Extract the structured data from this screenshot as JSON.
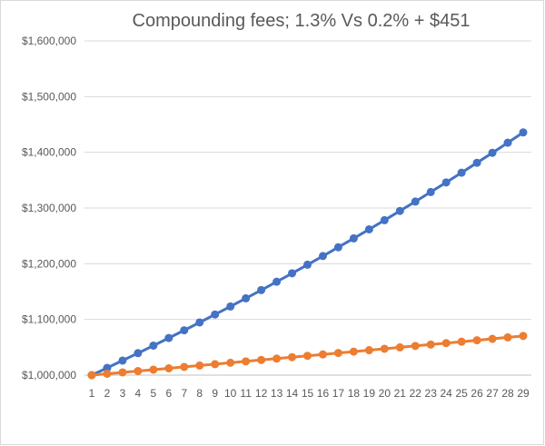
{
  "chart_data": {
    "type": "line",
    "title": "Compounding fees; 1.3% Vs 0.2% + $451",
    "xlabel": "",
    "ylabel": "",
    "x": [
      1,
      2,
      3,
      4,
      5,
      6,
      7,
      8,
      9,
      10,
      11,
      12,
      13,
      14,
      15,
      16,
      17,
      18,
      19,
      20,
      21,
      22,
      23,
      24,
      25,
      26,
      27,
      28,
      29
    ],
    "ylim": [
      1000000,
      1600000
    ],
    "ytick_step": 100000,
    "y_tick_labels": [
      "$1,000,000",
      "$1,100,000",
      "$1,200,000",
      "$1,300,000",
      "$1,400,000",
      "$1,500,000",
      "$1,600,000"
    ],
    "grid": true,
    "legend": "none",
    "series": [
      {
        "color": "#4472C4",
        "values": [
          1000000,
          1013000,
          1026169,
          1039509,
          1053023,
          1066712,
          1080579,
          1094627,
          1108857,
          1123272,
          1137874,
          1152667,
          1167651,
          1182831,
          1198208,
          1213784,
          1229563,
          1245548,
          1261740,
          1278142,
          1294759,
          1311590,
          1328641,
          1345914,
          1363410,
          1381135,
          1399090,
          1417278,
          1435702
        ]
      },
      {
        "color": "#ED7D31",
        "values": [
          1000000,
          1002451,
          1004906,
          1007366,
          1009831,
          1012300,
          1014773,
          1017251,
          1019734,
          1022221,
          1024713,
          1027209,
          1029710,
          1032215,
          1034725,
          1037240,
          1039759,
          1042283,
          1044811,
          1047344,
          1049882,
          1052424,
          1054971,
          1057522,
          1060078,
          1062638,
          1065203,
          1067773,
          1070347
        ]
      }
    ]
  }
}
